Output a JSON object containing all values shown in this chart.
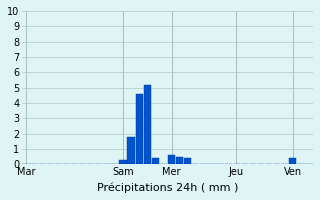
{
  "title": "",
  "xlabel": "Précipitations 24h ( mm )",
  "ylabel": "",
  "background_color": "#dff5f5",
  "bar_color": "#0055cc",
  "bar_edge_color": "#003399",
  "grid_color": "#b0c8c8",
  "ylim": [
    0,
    10
  ],
  "yticks": [
    0,
    1,
    2,
    3,
    4,
    5,
    6,
    7,
    8,
    9,
    10
  ],
  "day_labels": [
    "Mar",
    "Sam",
    "Mer",
    "Jeu",
    "Ven"
  ],
  "day_positions": [
    0,
    12,
    18,
    26,
    33
  ],
  "num_bars": 36,
  "bar_values": [
    0,
    0,
    0,
    0,
    0,
    0,
    0,
    0,
    0,
    0,
    0,
    0,
    0.3,
    1.8,
    4.6,
    5.2,
    0.4,
    0,
    0.6,
    0.5,
    0.4,
    0,
    0,
    0,
    0,
    0,
    0,
    0,
    0,
    0,
    0,
    0,
    0,
    0.4,
    0,
    0
  ]
}
